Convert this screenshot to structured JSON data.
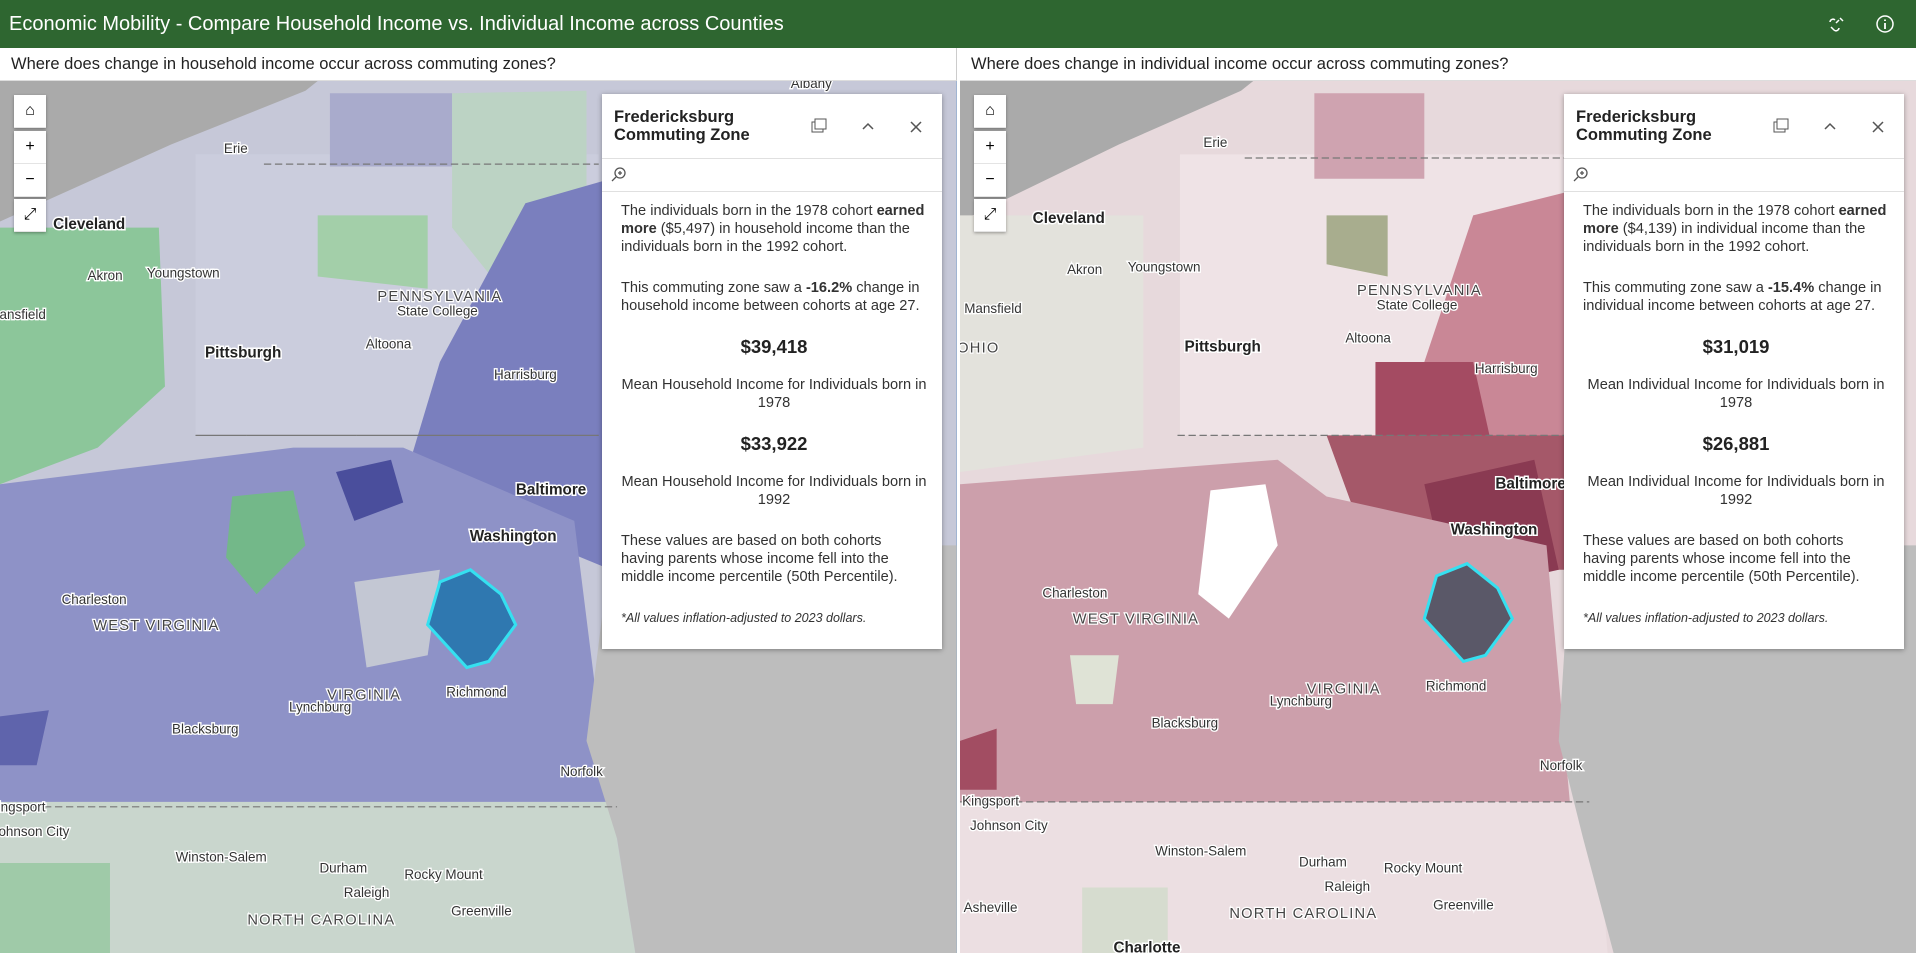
{
  "header": {
    "title": "Economic Mobility - Compare Household Income vs. Individual Income across Counties"
  },
  "panels": [
    {
      "question": "Where does change in household income occur across commuting zones?",
      "map_labels": [
        "Albany",
        "Erie",
        "Cleveland",
        "Akron",
        "Youngstown",
        "PENNSYLVANIA",
        "State College",
        "Mansfield",
        "Pittsburgh",
        "Altoona",
        "Harrisburg",
        "Baltimore",
        "Washington",
        "Charleston",
        "WEST VIRGINIA",
        "VIRGINIA",
        "Lynchburg",
        "Richmond",
        "Blacksburg",
        "Norfolk",
        "Kingsport",
        "Johnson City",
        "Winston-Salem",
        "Durham",
        "Rocky Mount",
        "Raleigh",
        "Greenville",
        "NORTH CAROLINA"
      ],
      "popup": {
        "title": "Fredericksburg Commuting Zone",
        "paragraph_1": [
          "The individuals born in the 1978 cohort ",
          "earned more",
          " ($5,497) in household income than the individuals born in the 1992 cohort."
        ],
        "paragraph_2": [
          "This commuting zone saw a ",
          "-16.2%",
          " change in household income between cohorts at age 27."
        ],
        "value_1978": "$39,418",
        "label_1978": "Mean Household Income for Individuals born in 1978",
        "value_1992": "$33,922",
        "label_1992": "Mean Household Income for Individuals born in 1992",
        "paragraph_3": "These values are based on both cohorts having parents whose income fell into the middle income percentile (50th Percentile).",
        "footnote": "*All values inflation-adjusted to 2023 dollars."
      }
    },
    {
      "question": "Where does change in individual income occur across commuting zones?",
      "map_labels": [
        "Erie",
        "Cleveland",
        "Akron",
        "Youngstown",
        "PENNSYLVANIA",
        "State College",
        "Mansfield",
        "OHIO",
        "Pittsburgh",
        "Altoona",
        "Harrisburg",
        "Baltimore",
        "Washington",
        "Charleston",
        "WEST VIRGINIA",
        "VIRGINIA",
        "Richmond",
        "Lynchburg",
        "Blacksburg",
        "Norfolk",
        "Kingsport",
        "Johnson City",
        "Winston-Salem",
        "Durham",
        "Rocky Mount",
        "Raleigh",
        "Greenville",
        "Asheville",
        "NORTH CAROLINA",
        "Charlotte"
      ],
      "popup": {
        "title": "Fredericksburg Commuting Zone",
        "paragraph_1": [
          "The individuals born in the 1978 cohort ",
          "earned more",
          " ($4,139) in individual income than the individuals born in the 1992 cohort."
        ],
        "paragraph_2": [
          "This commuting zone saw a ",
          "-15.4%",
          " change in individual income between cohorts at age 27."
        ],
        "value_1978": "$31,019",
        "label_1978": "Mean Individual Income for Individuals born in 1978",
        "value_1992": "$26,881",
        "label_1992": "Mean Individual Income for Individuals born in 1992",
        "paragraph_3": "These values are based on both cohorts having parents whose income fell into the middle income percentile (50th Percentile).",
        "footnote": "*All values inflation-adjusted to 2023 dollars."
      }
    }
  ]
}
